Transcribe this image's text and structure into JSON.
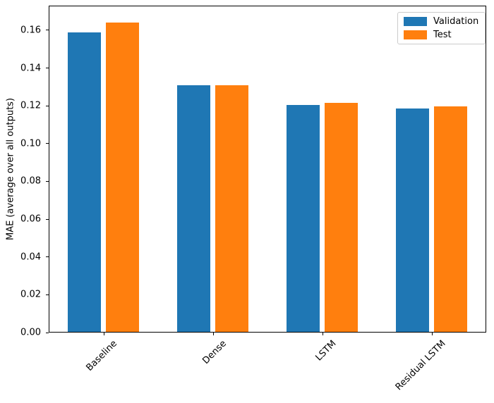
{
  "chart_data": {
    "type": "bar",
    "title": "",
    "xlabel": "",
    "ylabel": "MAE (average over all outputs)",
    "categories": [
      "Baseline",
      "Dense",
      "LSTM",
      "Residual LSTM"
    ],
    "series": [
      {
        "name": "Validation",
        "color": "#1f77b4",
        "values": [
          0.159,
          0.131,
          0.1205,
          0.1185
        ]
      },
      {
        "name": "Test",
        "color": "#ff7f0e",
        "values": [
          0.164,
          0.131,
          0.1215,
          0.1195
        ]
      }
    ],
    "ylim": [
      0,
      0.173
    ],
    "yticks": [
      0.0,
      0.02,
      0.04,
      0.06,
      0.08,
      0.1,
      0.12,
      0.14,
      0.16
    ],
    "ytick_labels": [
      "0.00",
      "0.02",
      "0.04",
      "0.06",
      "0.08",
      "0.10",
      "0.12",
      "0.14",
      "0.16"
    ],
    "xtick_rotation": 45,
    "grid": false,
    "legend": {
      "position": "upper right",
      "entries": [
        "Validation",
        "Test"
      ]
    }
  }
}
